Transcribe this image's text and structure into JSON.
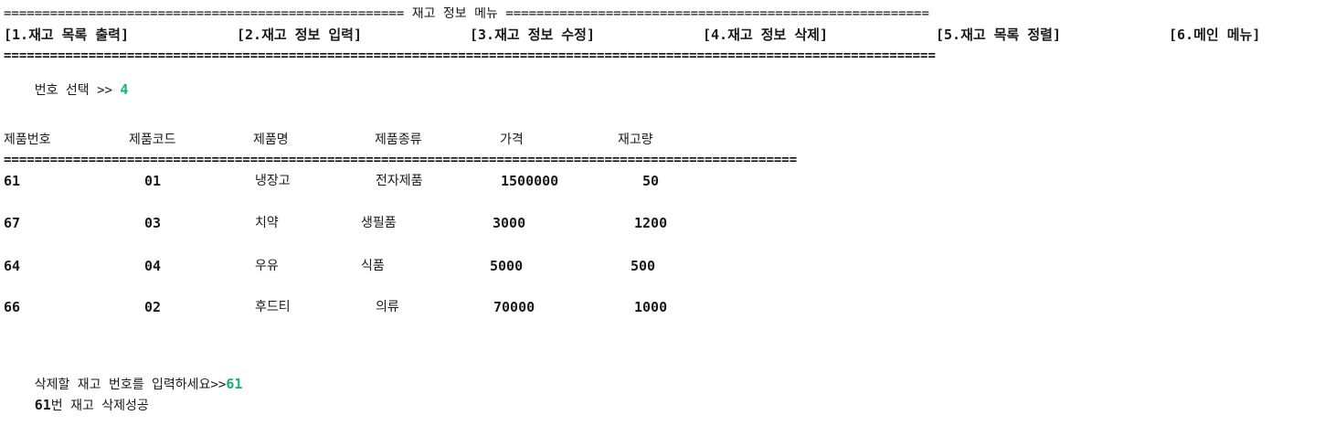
{
  "menu": {
    "title": "==================================================== 재고 정보 메뉴 =======================================================",
    "items": [
      "[1.재고 목록 출력]",
      "[2.재고 정보 입력]",
      "[3.재고 정보 수정]",
      "[4.재고 정보 삭제]",
      "[5.재고 목록 정렬]",
      "[6.메인 메뉴]"
    ],
    "separator": "========================================================================================================================="
  },
  "selection": {
    "prompt": "번호 선택 >> ",
    "value": "4"
  },
  "table": {
    "headers": [
      "제품번호",
      "제품코드",
      "제품명",
      "제품종류",
      "가격",
      "재고량"
    ],
    "separator": "=======================================================================================================",
    "rows": [
      {
        "no": "61",
        "code": "01",
        "name": "냉장고",
        "type": "전자제품",
        "price": "1500000",
        "stock": "50"
      },
      {
        "no": "67",
        "code": "03",
        "name": "치약",
        "type": "생필품",
        "price": "3000",
        "stock": "1200"
      },
      {
        "no": "64",
        "code": "04",
        "name": "우유",
        "type": "식품",
        "price": "5000",
        "stock": "500"
      },
      {
        "no": "66",
        "code": "02",
        "name": "후드티",
        "type": "의류",
        "price": "70000",
        "stock": "1000"
      }
    ]
  },
  "delete": {
    "prompt": "삭제할 재고 번호를 입력하세요>>",
    "value": "61",
    "result_num": "61",
    "result_text": "번 재고 삭제성공"
  },
  "colors": {
    "input_green": "#16b26a",
    "text": "#1a1a1a",
    "background": "#ffffff"
  }
}
